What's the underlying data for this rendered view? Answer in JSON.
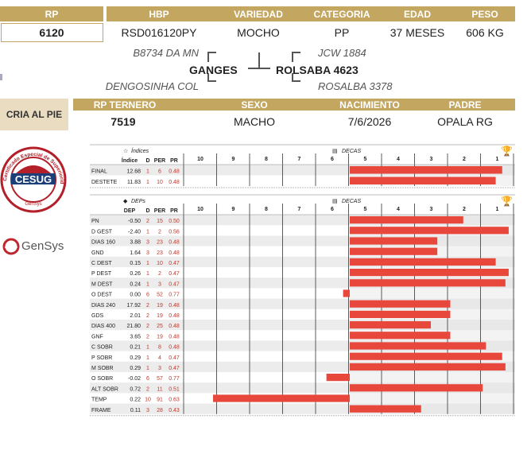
{
  "header": {
    "labels": {
      "rp": "RP",
      "hbp": "HBP",
      "variedad": "VARIEDAD",
      "categoria": "CATEGORIA",
      "edad": "EDAD",
      "peso": "PESO"
    },
    "values": {
      "rp": "6120",
      "hbp": "RSD016120PY",
      "variedad": "MOCHO",
      "categoria": "PP",
      "edad": "37 MESES",
      "peso": "606 KG"
    }
  },
  "pedigree": {
    "sire": "GANGES",
    "dam_sire": "ROLSABA 4623",
    "sire_sire": "B8734 DA MN",
    "sire_dam": "DENGOSINHA COL",
    "dam_sire_sire": "JCW 1884",
    "dam_sire_dam": "ROSALBA 3378"
  },
  "calf": {
    "title": "CRIA AL PIE",
    "labels": {
      "rp": "RP TERNERO",
      "sexo": "SEXO",
      "nacimiento": "NACIMIENTO",
      "padre": "PADRE"
    },
    "values": {
      "rp": "7519",
      "sexo": "MACHO",
      "nacimiento": "7/6/2026",
      "padre": "OPALA RG"
    }
  },
  "logos": {
    "cesug": "CESUG",
    "cesug_ring": "Certificado Especial de Superioridad Genética",
    "cesug_bottom": "GenSys",
    "gensys": "GenSys"
  },
  "indices_table": {
    "title": "Índices",
    "decas_label": "DECAS",
    "cols": [
      "Índice",
      "D",
      "PER",
      "PR"
    ],
    "deca_ticks": [
      "10",
      "9",
      "8",
      "7",
      "6",
      "5",
      "4",
      "3",
      "2",
      "1"
    ],
    "rows": [
      {
        "name": "FINAL",
        "value": "12.68",
        "d": "1",
        "per": "6",
        "pr": "0.48",
        "bar": 0.94
      },
      {
        "name": "DESTETE",
        "value": "11.83",
        "d": "1",
        "per": "10",
        "pr": "0.48",
        "bar": 0.9
      }
    ]
  },
  "deps_table": {
    "title": "DEPs",
    "decas_label": "DECAS",
    "cols": [
      "DEP",
      "D",
      "PER",
      "PR"
    ],
    "deca_ticks": [
      "10",
      "9",
      "8",
      "7",
      "6",
      "5",
      "4",
      "3",
      "2",
      "1"
    ],
    "rows": [
      {
        "name": "PN",
        "value": "-0.50",
        "d": "2",
        "per": "15",
        "pr": "0.50",
        "bar": 0.7
      },
      {
        "name": "D GEST",
        "value": "-2.40",
        "d": "1",
        "per": "2",
        "pr": "0.56",
        "bar": 0.98
      },
      {
        "name": "DIAS 160",
        "value": "3.88",
        "d": "3",
        "per": "23",
        "pr": "0.48",
        "bar": 0.54
      },
      {
        "name": "GND",
        "value": "1.64",
        "d": "3",
        "per": "23",
        "pr": "0.48",
        "bar": 0.54
      },
      {
        "name": "C DEST",
        "value": "0.15",
        "d": "1",
        "per": "10",
        "pr": "0.47",
        "bar": 0.9
      },
      {
        "name": "P DEST",
        "value": "0.26",
        "d": "1",
        "per": "2",
        "pr": "0.47",
        "bar": 0.98
      },
      {
        "name": "M DEST",
        "value": "0.24",
        "d": "1",
        "per": "3",
        "pr": "0.47",
        "bar": 0.96
      },
      {
        "name": "O DEST",
        "value": "0.00",
        "d": "6",
        "per": "52",
        "pr": "0.77",
        "bar": -0.04
      },
      {
        "name": "DIAS 240",
        "value": "17.92",
        "d": "2",
        "per": "19",
        "pr": "0.48",
        "bar": 0.62
      },
      {
        "name": "GDS",
        "value": "2.01",
        "d": "2",
        "per": "19",
        "pr": "0.48",
        "bar": 0.62
      },
      {
        "name": "DIAS 400",
        "value": "21.80",
        "d": "2",
        "per": "25",
        "pr": "0.48",
        "bar": 0.5
      },
      {
        "name": "GNF",
        "value": "3.65",
        "d": "2",
        "per": "19",
        "pr": "0.48",
        "bar": 0.62
      },
      {
        "name": "C SOBR",
        "value": "0.21",
        "d": "1",
        "per": "8",
        "pr": "0.48",
        "bar": 0.84
      },
      {
        "name": "P SOBR",
        "value": "0.29",
        "d": "1",
        "per": "4",
        "pr": "0.47",
        "bar": 0.94
      },
      {
        "name": "M SOBR",
        "value": "0.29",
        "d": "1",
        "per": "3",
        "pr": "0.47",
        "bar": 0.96
      },
      {
        "name": "O SOBR",
        "value": "-0.02",
        "d": "6",
        "per": "57",
        "pr": "0.77",
        "bar": -0.14
      },
      {
        "name": "ALT SOBR",
        "value": "0.72",
        "d": "2",
        "per": "11",
        "pr": "0.51",
        "bar": 0.82
      },
      {
        "name": "TEMP",
        "value": "0.22",
        "d": "10",
        "per": "91",
        "pr": "0.63",
        "bar": -0.82
      },
      {
        "name": "FRAME",
        "value": "0.11",
        "d": "3",
        "per": "28",
        "pr": "0.43",
        "bar": 0.44
      }
    ]
  },
  "colors": {
    "gold": "#c3a660",
    "bar": "#e8473c",
    "red_text": "#c0392b",
    "stripe": "#ececec"
  }
}
